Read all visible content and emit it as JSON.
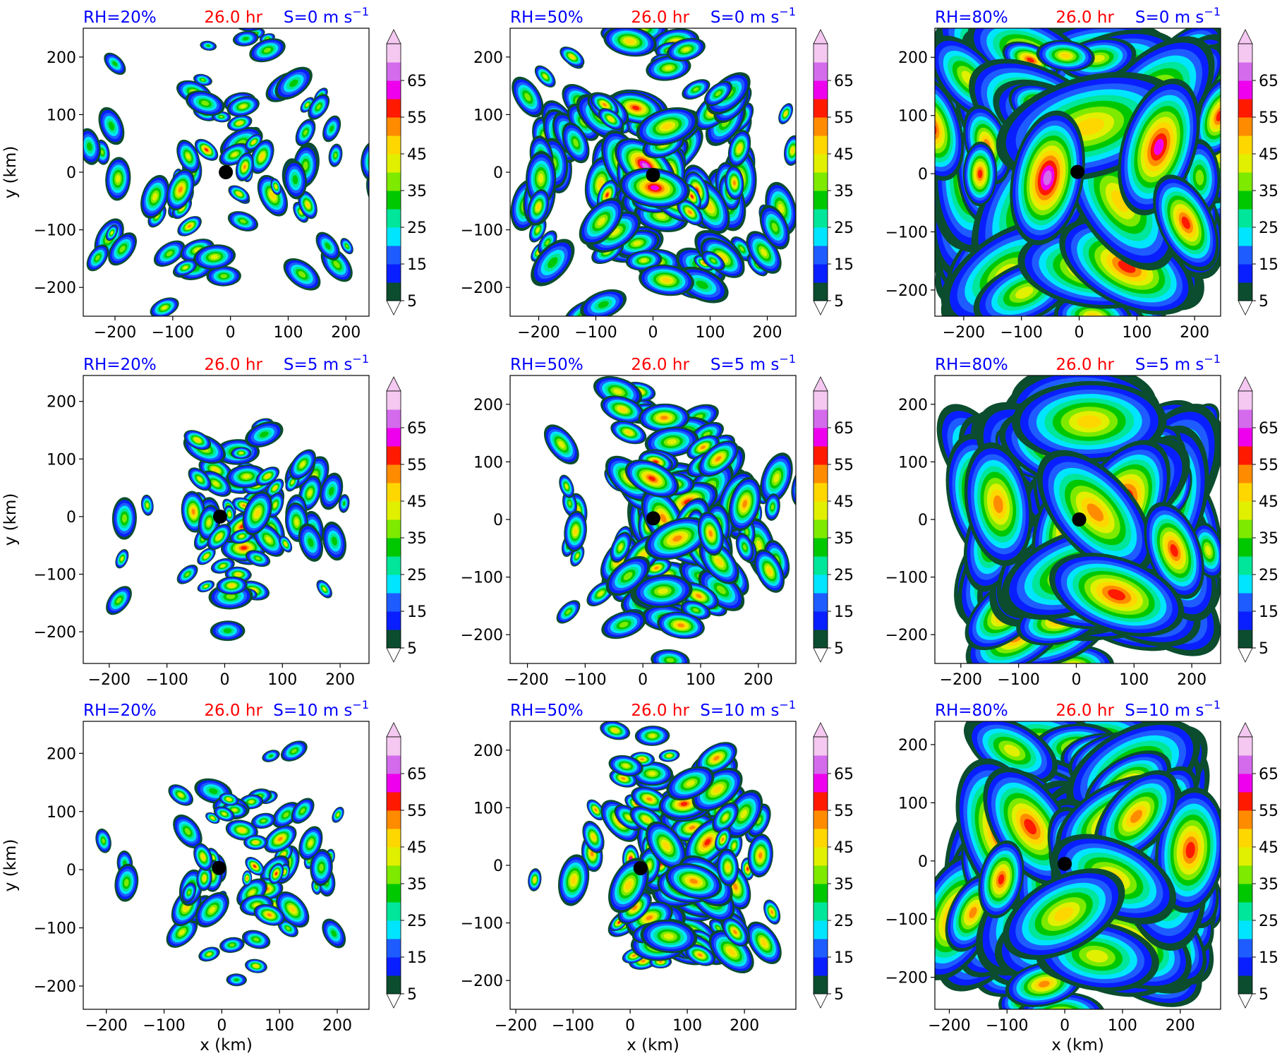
{
  "figure": {
    "colors": {
      "label_blue": "#0000ff",
      "label_red": "#ff0000",
      "center_marker": "#000000"
    }
  },
  "colorbar": {
    "levels": [
      5,
      10,
      15,
      20,
      25,
      30,
      35,
      40,
      45,
      50,
      55,
      60,
      65,
      70
    ],
    "tick_labels": [
      "5",
      "15",
      "25",
      "35",
      "45",
      "55",
      "65"
    ],
    "colors": [
      "#0b4d2e",
      "#0a1fff",
      "#1e5cff",
      "#00e5ff",
      "#00e69a",
      "#00c800",
      "#7dea00",
      "#e0f000",
      "#ffd700",
      "#ff8c00",
      "#ff1a00",
      "#ee00ee",
      "#d46bec",
      "#f4c8f0"
    ],
    "extend": "both"
  },
  "chart_data": [
    {
      "type": "heatmap",
      "rh": "RH=20%",
      "time": "26.0 hr",
      "shear_prefix": "S=0 m s",
      "shear_sup": "−1",
      "x_ticks": [
        -200,
        -100,
        0,
        100,
        200
      ],
      "x_tick_labels": [
        "−200",
        "−100",
        "0",
        "100",
        "200"
      ],
      "y_ticks": [
        -200,
        -100,
        0,
        100,
        200
      ],
      "y_tick_labels": [
        "−200",
        "−100",
        "0",
        "100",
        "200"
      ],
      "xlim": [
        -255,
        240
      ],
      "ylim": [
        -250,
        250
      ],
      "center": [
        -8,
        0
      ],
      "xlabel": "",
      "ylabel": "y (km)",
      "field": {
        "coverage": 0.16,
        "intensity": 0.5,
        "spiral": 0.8,
        "shift": [
          0,
          0
        ],
        "seed": 11,
        "cell_size": 15
      }
    },
    {
      "type": "heatmap",
      "rh": "RH=50%",
      "time": "26.0 hr",
      "shear_prefix": "S=0 m s",
      "shear_sup": "−1",
      "x_ticks": [
        -200,
        -100,
        0,
        100,
        200
      ],
      "x_tick_labels": [
        "−200",
        "−100",
        "0",
        "100",
        "200"
      ],
      "y_ticks": [
        -200,
        -100,
        0,
        100,
        200
      ],
      "y_tick_labels": [
        "−200",
        "−100",
        "0",
        "100",
        "200"
      ],
      "xlim": [
        -250,
        250
      ],
      "ylim": [
        -250,
        250
      ],
      "center": [
        0,
        -5
      ],
      "xlabel": "",
      "ylabel": "",
      "field": {
        "coverage": 0.45,
        "intensity": 0.62,
        "spiral": 0.9,
        "shift": [
          0,
          0
        ],
        "seed": 23,
        "cell_size": 18
      }
    },
    {
      "type": "heatmap",
      "rh": "RH=80%",
      "time": "26.0 hr",
      "shear_prefix": "S=0 m s",
      "shear_sup": "−1",
      "x_ticks": [
        -200,
        -100,
        0,
        100,
        200
      ],
      "x_tick_labels": [
        "−200",
        "−100",
        "0",
        "100",
        "200"
      ],
      "y_ticks": [
        -200,
        -100,
        0,
        100,
        200
      ],
      "y_tick_labels": [
        "−200",
        "−100",
        "0",
        "100",
        "200"
      ],
      "xlim": [
        -250,
        245
      ],
      "ylim": [
        -245,
        250
      ],
      "center": [
        -3,
        3
      ],
      "xlabel": "",
      "ylabel": "",
      "field": {
        "coverage": 0.82,
        "intensity": 0.8,
        "spiral": 1.0,
        "shift": [
          0,
          0
        ],
        "seed": 37,
        "cell_size": 40
      }
    },
    {
      "type": "heatmap",
      "rh": "RH=20%",
      "time": "26.0 hr",
      "shear_prefix": "S=5 m s",
      "shear_sup": "−1",
      "x_ticks": [
        -200,
        -100,
        0,
        100,
        200
      ],
      "x_tick_labels": [
        "−200",
        "−100",
        "0",
        "100",
        "200"
      ],
      "y_ticks": [
        -200,
        -100,
        0,
        100,
        200
      ],
      "y_tick_labels": [
        "−200",
        "−100",
        "0",
        "100",
        "200"
      ],
      "xlim": [
        -245,
        250
      ],
      "ylim": [
        -255,
        245
      ],
      "center": [
        -8,
        0
      ],
      "xlabel": "",
      "ylabel": "y (km)",
      "field": {
        "coverage": 0.17,
        "intensity": 0.52,
        "spiral": 0.8,
        "shift": [
          60,
          0
        ],
        "seed": 41,
        "cell_size": 15
      }
    },
    {
      "type": "heatmap",
      "rh": "RH=50%",
      "time": "26.0 hr",
      "shear_prefix": "S=5 m s",
      "shear_sup": "−1",
      "x_ticks": [
        -200,
        -100,
        0,
        100,
        200
      ],
      "x_tick_labels": [
        "−200",
        "−100",
        "0",
        "100",
        "200"
      ],
      "y_ticks": [
        -200,
        -100,
        0,
        100,
        200
      ],
      "y_tick_labels": [
        "−200",
        "−100",
        "0",
        "100",
        "200"
      ],
      "xlim": [
        -230,
        265
      ],
      "ylim": [
        -250,
        250
      ],
      "center": [
        18,
        2
      ],
      "xlabel": "",
      "ylabel": "",
      "field": {
        "coverage": 0.42,
        "intensity": 0.66,
        "spiral": 0.9,
        "shift": [
          60,
          -20
        ],
        "seed": 53,
        "cell_size": 18
      }
    },
    {
      "type": "heatmap",
      "rh": "RH=80%",
      "time": "26.0 hr",
      "shear_prefix": "S=5 m s",
      "shear_sup": "−1",
      "x_ticks": [
        -200,
        -100,
        0,
        100,
        200
      ],
      "x_tick_labels": [
        "−200",
        "−100",
        "0",
        "100",
        "200"
      ],
      "y_ticks": [
        -200,
        -100,
        0,
        100,
        200
      ],
      "y_tick_labels": [
        "−200",
        "−100",
        "0",
        "100",
        "200"
      ],
      "xlim": [
        -245,
        250
      ],
      "ylim": [
        -250,
        250
      ],
      "center": [
        5,
        0
      ],
      "xlabel": "",
      "ylabel": "",
      "field": {
        "coverage": 0.8,
        "intensity": 0.78,
        "spiral": 1.0,
        "shift": [
          50,
          0
        ],
        "seed": 67,
        "cell_size": 40
      }
    },
    {
      "type": "heatmap",
      "rh": "RH=20%",
      "time": "26.0 hr",
      "shear_prefix": "S=10 m s",
      "shear_sup": "−1",
      "x_ticks": [
        -200,
        -100,
        0,
        100,
        200
      ],
      "x_tick_labels": [
        "−200",
        "−100",
        "0",
        "100",
        "200"
      ],
      "y_ticks": [
        -200,
        -100,
        0,
        100,
        200
      ],
      "y_tick_labels": [
        "−200",
        "−100",
        "0",
        "100",
        "200"
      ],
      "xlim": [
        -240,
        255
      ],
      "ylim": [
        -240,
        255
      ],
      "center": [
        -5,
        3
      ],
      "xlabel": "x (km)",
      "ylabel": "y (km)",
      "field": {
        "coverage": 0.14,
        "intensity": 0.52,
        "spiral": 0.7,
        "shift": [
          100,
          -20
        ],
        "seed": 79,
        "cell_size": 15
      }
    },
    {
      "type": "heatmap",
      "rh": "RH=50%",
      "time": "26.0 hr",
      "shear_prefix": "S=10 m s",
      "shear_sup": "−1",
      "x_ticks": [
        -200,
        -100,
        0,
        100,
        200
      ],
      "x_tick_labels": [
        "−200",
        "−100",
        "0",
        "100",
        "200"
      ],
      "y_ticks": [
        -200,
        -100,
        0,
        100,
        200
      ],
      "y_tick_labels": [
        "−200",
        "−100",
        "0",
        "100",
        "200"
      ],
      "xlim": [
        -210,
        290
      ],
      "ylim": [
        -250,
        250
      ],
      "center": [
        18,
        -5
      ],
      "xlabel": "x (km)",
      "ylabel": "",
      "field": {
        "coverage": 0.42,
        "intensity": 0.7,
        "spiral": 0.8,
        "shift": [
          110,
          20
        ],
        "seed": 97,
        "cell_size": 18
      }
    },
    {
      "type": "heatmap",
      "rh": "RH=80%",
      "time": "26.0 hr",
      "shear_prefix": "S=10 m s",
      "shear_sup": "−1",
      "x_ticks": [
        -200,
        -100,
        0,
        100,
        200
      ],
      "x_tick_labels": [
        "−200",
        "−100",
        "0",
        "100",
        "200"
      ],
      "y_ticks": [
        -200,
        -100,
        0,
        100,
        200
      ],
      "y_tick_labels": [
        "−200",
        "−100",
        "0",
        "100",
        "200"
      ],
      "xlim": [
        -225,
        270
      ],
      "ylim": [
        -255,
        240
      ],
      "center": [
        0,
        -5
      ],
      "xlabel": "x (km)",
      "ylabel": "",
      "field": {
        "coverage": 0.78,
        "intensity": 0.8,
        "spiral": 0.9,
        "shift": [
          90,
          10
        ],
        "seed": 113,
        "cell_size": 40
      }
    }
  ]
}
